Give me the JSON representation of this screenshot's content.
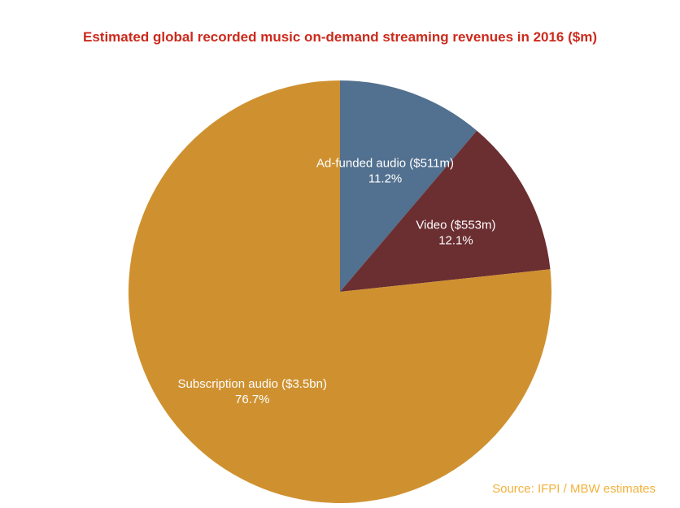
{
  "chart_data": {
    "type": "pie",
    "title": "Estimated global recorded music on-demand streaming revenues in 2016 ($m)",
    "slices": [
      {
        "label": "Ad-funded audio ($511m)",
        "percent_label": "11.2%",
        "value": 11.2,
        "color": "#52708f"
      },
      {
        "label": "Video ($553m)",
        "percent_label": "12.1%",
        "value": 12.1,
        "color": "#6b2e31"
      },
      {
        "label": "Subscription audio ($3.5bn)",
        "percent_label": "76.7%",
        "value": 76.7,
        "color": "#cf9130"
      }
    ]
  },
  "source": "Source: IFPI / MBW estimates",
  "colors": {
    "title": "#cc2a1c",
    "source": "#f2b13c"
  }
}
